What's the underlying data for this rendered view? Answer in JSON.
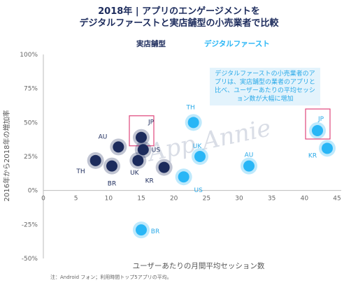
{
  "title_line1": "2018年 | アプリのエンゲージメントを",
  "title_line2": "デジタルファーストと実店舗型の小売業者で比較",
  "callout": "デジタルファーストの小売業者のアプリは、実店舗型の業者のアプリと比べ、ユーザーあたりの平均セッション数が大幅に増加",
  "footnote": "注：Android フォン；利用時間トップ5アプリの平均。",
  "watermark": "App Annie",
  "colors": {
    "brick": "#1c2b5c",
    "digital": "#29b6f6",
    "highlight": "#e0457b"
  },
  "chart_data": {
    "type": "scatter",
    "xlabel": "ユーザーあたりの月間平均セッション数",
    "ylabel": "2016年から2018年の増加率",
    "xlim": [
      0,
      45
    ],
    "ylim": [
      -0.5,
      1.0
    ],
    "x_ticks": [
      "0",
      "5",
      "10",
      "15",
      "20",
      "25",
      "30",
      "35",
      "40",
      "45"
    ],
    "y_ticks": [
      "100%",
      "75%",
      "50%",
      "25%",
      "0%",
      "-25%",
      "-50%"
    ],
    "grid": false,
    "legend": "top",
    "series": [
      {
        "name": "実店舗型",
        "color": "#1c2b5c",
        "points": [
          {
            "label": "JP",
            "x": 15.0,
            "y": 0.39
          },
          {
            "label": "US",
            "x": 15.3,
            "y": 0.3
          },
          {
            "label": "AU",
            "x": 11.5,
            "y": 0.32
          },
          {
            "label": "TH",
            "x": 8.0,
            "y": 0.22
          },
          {
            "label": "BR",
            "x": 10.5,
            "y": 0.18
          },
          {
            "label": "UK",
            "x": 14.5,
            "y": 0.22
          },
          {
            "label": "KR",
            "x": 18.5,
            "y": 0.17
          }
        ]
      },
      {
        "name": "デジタルファースト",
        "color": "#29b6f6",
        "points": [
          {
            "label": "TH",
            "x": 23.0,
            "y": 0.5
          },
          {
            "label": "UK",
            "x": 24.0,
            "y": 0.25
          },
          {
            "label": "US",
            "x": 21.5,
            "y": 0.1
          },
          {
            "label": "AU",
            "x": 31.5,
            "y": 0.18
          },
          {
            "label": "JP",
            "x": 42.0,
            "y": 0.44
          },
          {
            "label": "KR",
            "x": 43.5,
            "y": 0.31
          },
          {
            "label": "BR",
            "x": 15.0,
            "y": -0.29
          }
        ]
      }
    ],
    "highlighted": [
      "実店舗型:JP",
      "デジタルファースト:JP"
    ]
  }
}
